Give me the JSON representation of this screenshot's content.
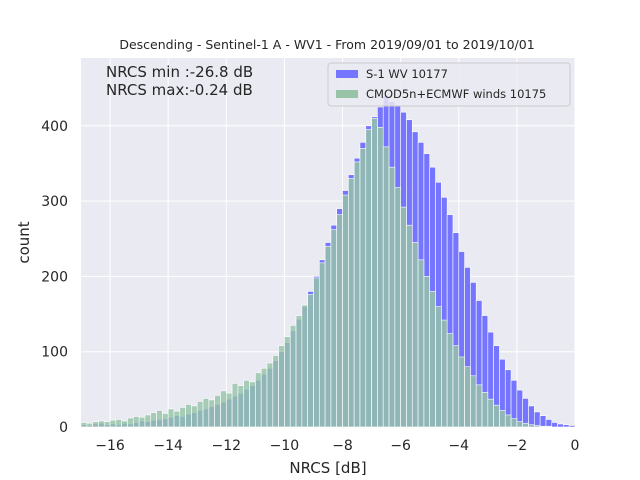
{
  "chart_data": {
    "type": "bar",
    "title": "Descending - Sentinel-1 A - WV1 - From 2019/09/01 to 2019/10/01",
    "xlabel": "NRCS [dB]",
    "ylabel": "count",
    "xlim": [
      -17,
      0
    ],
    "ylim": [
      0,
      490
    ],
    "xticks": [
      -16,
      -14,
      -12,
      -10,
      -8,
      -6,
      -4,
      -2,
      0
    ],
    "xtick_labels": [
      "−16",
      "−14",
      "−12",
      "−10",
      "−8",
      "−6",
      "−4",
      "−2",
      "0"
    ],
    "yticks": [
      0,
      100,
      200,
      300,
      400
    ],
    "ytick_labels": [
      "0",
      "100",
      "200",
      "300",
      "400"
    ],
    "grid": true,
    "legend_position": "top-right",
    "bin_width": 0.2,
    "series": [
      {
        "name": "S-1 WV 10177",
        "color": "#7575ff",
        "x": [
          -17,
          -16.8,
          -16.6,
          -16.4,
          -16.2,
          -16,
          -15.8,
          -15.6,
          -15.4,
          -15.2,
          -15,
          -14.8,
          -14.6,
          -14.4,
          -14.2,
          -14,
          -13.8,
          -13.6,
          -13.4,
          -13.2,
          -13,
          -12.8,
          -12.6,
          -12.4,
          -12.2,
          -12,
          -11.8,
          -11.6,
          -11.4,
          -11.2,
          -11,
          -10.8,
          -10.6,
          -10.4,
          -10.2,
          -10,
          -9.8,
          -9.6,
          -9.4,
          -9.2,
          -9,
          -8.8,
          -8.6,
          -8.4,
          -8.2,
          -8,
          -7.8,
          -7.6,
          -7.4,
          -7.2,
          -7,
          -6.8,
          -6.6,
          -6.4,
          -6.2,
          -6,
          -5.8,
          -5.6,
          -5.4,
          -5.2,
          -5,
          -4.8,
          -4.6,
          -4.4,
          -4.2,
          -4,
          -3.8,
          -3.6,
          -3.4,
          -3.2,
          -3,
          -2.8,
          -2.6,
          -2.4,
          -2.2,
          -2,
          -1.8,
          -1.6,
          -1.4,
          -1.2,
          -1,
          -0.8,
          -0.6,
          -0.4,
          -0.2
        ],
        "values": [
          3,
          2,
          4,
          5,
          3,
          4,
          3,
          5,
          4,
          6,
          8,
          7,
          9,
          10,
          11,
          13,
          15,
          14,
          17,
          19,
          22,
          24,
          27,
          30,
          33,
          37,
          41,
          45,
          50,
          55,
          62,
          70,
          78,
          88,
          100,
          112,
          128,
          143,
          160,
          180,
          200,
          222,
          245,
          268,
          290,
          314,
          335,
          357,
          378,
          400,
          412,
          425,
          440,
          432,
          426,
          418,
          408,
          392,
          378,
          363,
          345,
          325,
          305,
          282,
          258,
          233,
          212,
          192,
          168,
          148,
          126,
          108,
          90,
          76,
          62,
          49,
          38,
          28,
          20,
          15,
          10,
          6,
          4,
          3,
          2
        ]
      },
      {
        "name": "CMOD5n+ECMWF winds 10175",
        "color": "#97c4a8",
        "x": [
          -17,
          -16.8,
          -16.6,
          -16.4,
          -16.2,
          -16,
          -15.8,
          -15.6,
          -15.4,
          -15.2,
          -15,
          -14.8,
          -14.6,
          -14.4,
          -14.2,
          -14,
          -13.8,
          -13.6,
          -13.4,
          -13.2,
          -13,
          -12.8,
          -12.6,
          -12.4,
          -12.2,
          -12,
          -11.8,
          -11.6,
          -11.4,
          -11.2,
          -11,
          -10.8,
          -10.6,
          -10.4,
          -10.2,
          -10,
          -9.8,
          -9.6,
          -9.4,
          -9.2,
          -9,
          -8.8,
          -8.6,
          -8.4,
          -8.2,
          -8,
          -7.8,
          -7.6,
          -7.4,
          -7.2,
          -7,
          -6.8,
          -6.6,
          -6.4,
          -6.2,
          -6,
          -5.8,
          -5.6,
          -5.4,
          -5.2,
          -5,
          -4.8,
          -4.6,
          -4.4,
          -4.2,
          -4,
          -3.8,
          -3.6,
          -3.4,
          -3.2,
          -3,
          -2.8,
          -2.6,
          -2.4,
          -2.2,
          -2,
          -1.8,
          -1.6,
          -1.4,
          -1.2,
          -1,
          -0.8,
          -0.6,
          -0.4,
          -0.2
        ],
        "values": [
          6,
          5,
          7,
          8,
          7,
          9,
          10,
          8,
          12,
          14,
          13,
          16,
          19,
          22,
          18,
          24,
          21,
          26,
          30,
          28,
          34,
          38,
          36,
          42,
          48,
          45,
          58,
          55,
          62,
          60,
          72,
          78,
          85,
          95,
          108,
          120,
          135,
          148,
          162,
          176,
          198,
          218,
          240,
          262,
          282,
          308,
          330,
          352,
          370,
          395,
          410,
          398,
          372,
          345,
          318,
          292,
          268,
          245,
          222,
          200,
          180,
          160,
          142,
          124,
          108,
          93,
          80,
          68,
          56,
          46,
          37,
          29,
          22,
          16,
          11,
          7,
          5,
          3,
          2,
          1,
          1,
          0,
          0,
          0,
          0
        ]
      }
    ],
    "annotations": [
      {
        "text": "NRCS min :-26.8 dB"
      },
      {
        "text": "NRCS max:-0.24 dB"
      }
    ]
  }
}
